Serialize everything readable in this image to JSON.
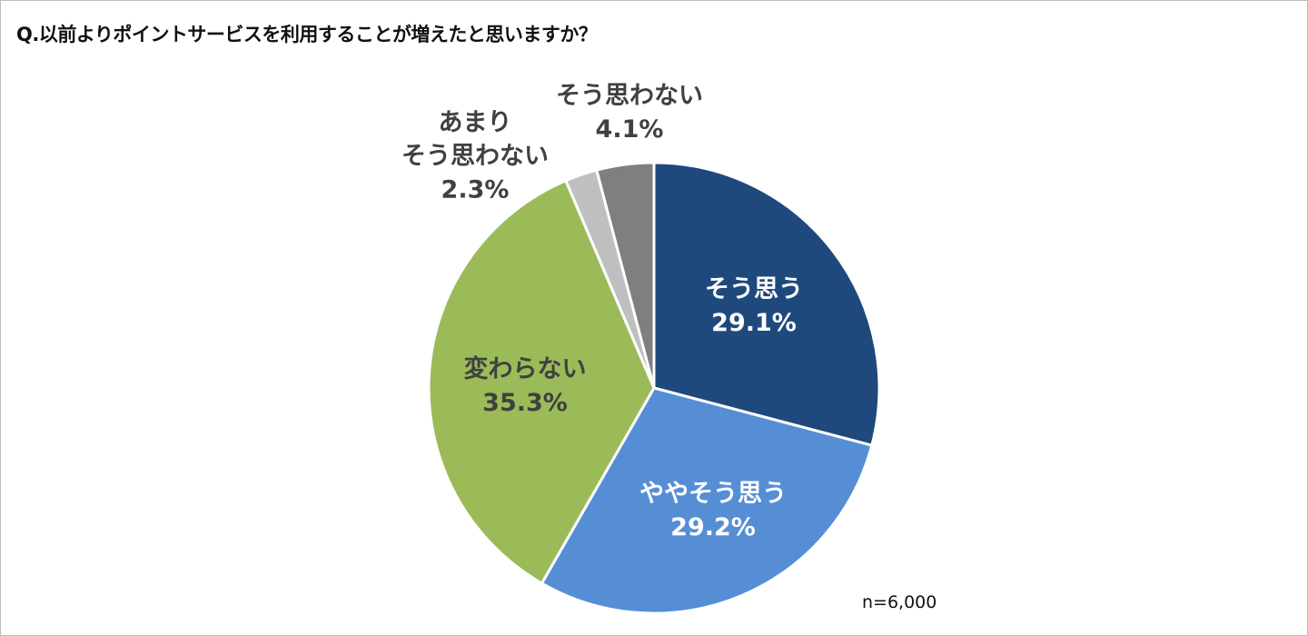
{
  "chart_data": {
    "type": "pie",
    "title": "Q.以前よりポイントサービスを利用することが増えたと思いますか？",
    "note": "n=6,000",
    "slices": [
      {
        "label": "そう思う",
        "value": 29.1,
        "value_label": "29.1%",
        "color": "#1F497D"
      },
      {
        "label": "ややそう思う",
        "value": 29.2,
        "value_label": "29.2%",
        "color": "#558ED5"
      },
      {
        "label": "変わらない",
        "value": 35.3,
        "value_label": "35.3%",
        "color": "#9BBB59"
      },
      {
        "label_lines": [
          "あまり",
          "そう思わない"
        ],
        "value": 2.3,
        "value_label": "2.3%",
        "color": "#BFBFBF"
      },
      {
        "label": "そう思わない",
        "value": 4.1,
        "value_label": "4.1%",
        "color": "#7F7F7F"
      }
    ],
    "start_angle": "top",
    "direction": "clockwise"
  }
}
